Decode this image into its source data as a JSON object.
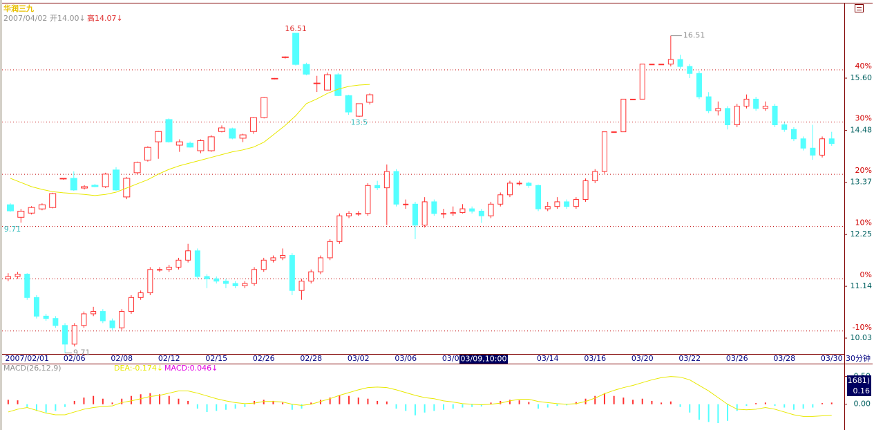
{
  "header": {
    "name": "华润三九",
    "date": "2007/04/02",
    "open": "开14.00↓",
    "high": "高14.07↓"
  },
  "period_label": "30分钟",
  "cursor_label": "03/09,10:00",
  "chart_data": [
    {
      "type": "candlestick",
      "up_color": "#ff3030",
      "down_color": "#54ffff",
      "grid": true,
      "extreme_labels": true,
      "ylim": [
        9.69,
        17.2
      ],
      "yticks": [
        {
          "value": 15.6,
          "label": "15.60"
        },
        14.48,
        13.37,
        12.25,
        11.14,
        10.03
      ],
      "y2lim": [
        -14.4,
        52.7
      ],
      "y2ticks": [
        {
          "value": 40,
          "label": "40%"
        },
        {
          "value": 30,
          "label": "30%"
        },
        {
          "value": 20,
          "label": "20%"
        },
        {
          "value": 10,
          "label": "10%"
        },
        {
          "value": 0,
          "label": "0%"
        },
        {
          "value": -10,
          "label": "-10%"
        }
      ],
      "categories": [
        null,
        null,
        "2007/02/01",
        null,
        null,
        null,
        null,
        "02/06",
        null,
        null,
        null,
        null,
        "02/08",
        null,
        null,
        null,
        null,
        "02/12",
        null,
        null,
        null,
        null,
        "02/15",
        null,
        null,
        null,
        null,
        "02/26",
        null,
        null,
        null,
        null,
        "02/28",
        null,
        null,
        null,
        null,
        "03/02",
        null,
        null,
        null,
        null,
        "03/06",
        null,
        null,
        null,
        null,
        "03/08",
        null,
        null,
        null,
        null,
        null,
        null,
        null,
        null,
        null,
        "03/14",
        null,
        null,
        null,
        null,
        "03/16",
        null,
        null,
        null,
        null,
        "03/20",
        null,
        null,
        null,
        null,
        "03/22",
        null,
        null,
        null,
        null,
        "03/26",
        null,
        null,
        null,
        null,
        "03/28",
        null,
        null,
        null,
        null,
        "03/30"
      ],
      "ohlc": [
        [
          11.3,
          11.42,
          11.25,
          11.35
        ],
        [
          11.35,
          11.45,
          11.3,
          11.4
        ],
        [
          11.4,
          11.42,
          10.85,
          10.9
        ],
        [
          10.9,
          10.95,
          10.45,
          10.5
        ],
        [
          10.5,
          10.55,
          10.4,
          10.45
        ],
        [
          10.45,
          10.5,
          10.25,
          10.3
        ],
        [
          10.3,
          10.35,
          9.71,
          9.9
        ],
        [
          9.9,
          10.35,
          9.85,
          10.3
        ],
        [
          10.3,
          10.6,
          10.25,
          10.55
        ],
        [
          10.55,
          10.7,
          10.5,
          10.6
        ],
        [
          10.6,
          10.65,
          10.35,
          10.4
        ],
        [
          10.4,
          10.45,
          10.2,
          10.25
        ],
        [
          10.25,
          10.65,
          10.2,
          10.6
        ],
        [
          10.6,
          10.95,
          10.55,
          10.9
        ],
        [
          10.9,
          11.05,
          10.85,
          11.0
        ],
        [
          11.0,
          11.55,
          10.95,
          11.5
        ],
        [
          11.5,
          11.55,
          11.45,
          11.5
        ],
        [
          11.5,
          11.6,
          11.45,
          11.55
        ],
        [
          11.55,
          11.75,
          11.5,
          11.7
        ],
        [
          11.7,
          12.05,
          11.65,
          11.9
        ],
        [
          11.9,
          11.95,
          11.3,
          11.35
        ],
        [
          11.35,
          11.4,
          11.1,
          11.3
        ],
        [
          11.3,
          11.35,
          11.2,
          11.25
        ],
        [
          11.25,
          11.3,
          11.1,
          11.2
        ],
        [
          11.2,
          11.25,
          11.1,
          11.15
        ],
        [
          11.15,
          11.25,
          11.1,
          11.2
        ],
        [
          11.2,
          11.55,
          11.15,
          11.5
        ],
        [
          11.5,
          11.75,
          11.45,
          11.7
        ],
        [
          11.7,
          11.8,
          11.65,
          11.75
        ],
        [
          11.75,
          11.95,
          11.7,
          11.8
        ],
        [
          11.8,
          11.85,
          10.95,
          11.05
        ],
        [
          11.05,
          11.3,
          10.85,
          11.25
        ],
        [
          11.25,
          11.5,
          11.2,
          11.45
        ],
        [
          11.45,
          11.8,
          11.4,
          11.75
        ],
        [
          11.75,
          12.15,
          11.7,
          12.1
        ],
        [
          12.1,
          12.7,
          12.05,
          12.65
        ],
        [
          12.65,
          12.75,
          12.6,
          12.7
        ],
        [
          12.7,
          12.75,
          12.65,
          12.7
        ],
        [
          12.7,
          13.35,
          12.65,
          13.3
        ],
        [
          13.3,
          13.4,
          13.2,
          13.25
        ],
        [
          13.25,
          13.75,
          12.45,
          13.6
        ],
        [
          13.6,
          13.65,
          12.85,
          12.9
        ],
        [
          12.9,
          13.0,
          12.8,
          12.9
        ],
        [
          12.9,
          12.95,
          12.15,
          12.45
        ],
        [
          12.45,
          13.05,
          12.4,
          12.95
        ],
        [
          12.95,
          13.0,
          12.65,
          12.7
        ],
        [
          12.7,
          12.8,
          12.6,
          12.7
        ],
        [
          12.7,
          12.85,
          12.65,
          12.72
        ],
        [
          12.72,
          12.9,
          12.7,
          12.8
        ],
        [
          12.8,
          12.85,
          12.7,
          12.75
        ],
        [
          12.75,
          12.8,
          12.5,
          12.65
        ],
        [
          12.65,
          12.95,
          12.6,
          12.9
        ],
        [
          12.9,
          13.15,
          12.85,
          13.1
        ],
        [
          13.1,
          13.4,
          13.05,
          13.35
        ],
        [
          13.35,
          13.4,
          13.3,
          13.35
        ],
        [
          13.35,
          13.38,
          13.25,
          13.3
        ],
        [
          13.3,
          13.32,
          12.75,
          12.8
        ],
        [
          12.8,
          12.95,
          12.75,
          12.85
        ],
        [
          12.85,
          13.05,
          12.8,
          12.95
        ],
        [
          12.95,
          13.0,
          12.8,
          12.85
        ],
        [
          12.85,
          13.05,
          12.8,
          13.0
        ],
        [
          13.0,
          13.45,
          12.95,
          13.4
        ],
        [
          13.4,
          13.65,
          13.35,
          13.6
        ],
        [
          13.6,
          14.45,
          13.55,
          14.45
        ],
        [
          14.45,
          14.45,
          14.45,
          14.45
        ],
        [
          14.45,
          15.15,
          14.45,
          15.15
        ],
        [
          15.15,
          15.15,
          15.15,
          15.15
        ],
        [
          15.15,
          15.9,
          15.15,
          15.9
        ],
        [
          15.9,
          15.9,
          15.9,
          15.9
        ],
        [
          15.9,
          15.9,
          15.9,
          15.9
        ],
        [
          15.9,
          16.51,
          15.85,
          16.0
        ],
        [
          16.0,
          16.1,
          15.8,
          15.85
        ],
        [
          15.85,
          15.9,
          15.6,
          15.7
        ],
        [
          15.7,
          15.75,
          15.15,
          15.2
        ],
        [
          15.2,
          15.3,
          14.85,
          14.9
        ],
        [
          14.9,
          15.1,
          14.8,
          14.95
        ],
        [
          14.95,
          15.0,
          14.5,
          14.6
        ],
        [
          14.6,
          15.05,
          14.55,
          15.0
        ],
        [
          15.0,
          15.25,
          14.95,
          15.15
        ],
        [
          15.15,
          15.2,
          14.9,
          14.95
        ],
        [
          14.95,
          15.1,
          14.9,
          15.0
        ],
        [
          15.0,
          15.05,
          14.55,
          14.6
        ],
        [
          14.6,
          14.65,
          14.45,
          14.5
        ],
        [
          14.5,
          14.55,
          14.25,
          14.3
        ],
        [
          14.3,
          14.35,
          14.05,
          14.1
        ],
        [
          14.1,
          14.6,
          13.85,
          13.95
        ],
        [
          13.95,
          14.35,
          13.9,
          14.3
        ],
        [
          14.3,
          14.45,
          14.15,
          14.2
        ]
      ]
    },
    {
      "type": "candlestick",
      "up_color": "#ff3030",
      "down_color": "#54ffff",
      "extreme_labels": true,
      "ylim": [
        9.51,
        16.71
      ],
      "ma_color": "#e8e800",
      "ohlc": [
        [
          10.35,
          10.4,
          10.1,
          10.13
        ],
        [
          9.9,
          10.2,
          9.71,
          10.12
        ],
        [
          10.05,
          10.3,
          10.0,
          10.25
        ],
        [
          10.2,
          10.4,
          10.15,
          10.35
        ],
        [
          10.25,
          10.78,
          10.22,
          10.75
        ],
        [
          11.28,
          11.3,
          11.25,
          11.3
        ],
        [
          11.3,
          11.55,
          10.85,
          10.88
        ],
        [
          10.95,
          11.05,
          10.9,
          11.0
        ],
        [
          11.05,
          11.1,
          10.98,
          11.0
        ],
        [
          11.0,
          11.5,
          10.95,
          11.45
        ],
        [
          11.6,
          11.7,
          10.85,
          10.88
        ],
        [
          10.63,
          11.35,
          10.55,
          11.3
        ],
        [
          11.5,
          11.9,
          11.45,
          11.87
        ],
        [
          11.95,
          12.45,
          11.9,
          12.41
        ],
        [
          12.61,
          13.0,
          12.0,
          12.98
        ],
        [
          13.41,
          13.45,
          12.58,
          12.61
        ],
        [
          12.49,
          12.7,
          12.25,
          12.61
        ],
        [
          12.56,
          12.62,
          12.4,
          12.42
        ],
        [
          12.29,
          12.7,
          12.2,
          12.65
        ],
        [
          12.29,
          12.85,
          12.25,
          12.79
        ],
        [
          12.98,
          13.2,
          12.95,
          13.11
        ],
        [
          13.08,
          13.12,
          12.7,
          12.74
        ],
        [
          12.74,
          12.9,
          12.6,
          12.86
        ],
        [
          12.98,
          13.5,
          12.9,
          13.48
        ],
        [
          13.48,
          14.22,
          13.45,
          14.2
        ],
        [
          14.88,
          14.9,
          14.85,
          14.89
        ],
        [
          15.65,
          15.68,
          15.6,
          15.66
        ],
        [
          16.51,
          16.51,
          15.35,
          15.39
        ],
        [
          15.39,
          15.45,
          15.0,
          15.04
        ],
        [
          14.7,
          14.98,
          14.4,
          14.72
        ],
        [
          14.47,
          15.1,
          14.45,
          15.02
        ],
        [
          15.02,
          15.08,
          14.25,
          14.27
        ],
        [
          14.27,
          14.3,
          13.58,
          13.68
        ],
        [
          13.53,
          13.98,
          13.5,
          13.98
        ],
        [
          14.03,
          14.35,
          13.95,
          14.3
        ]
      ],
      "ma": [
        11.3,
        11.15,
        11.0,
        10.9,
        10.82,
        10.78,
        10.75,
        10.72,
        10.68,
        10.72,
        10.8,
        10.95,
        11.1,
        11.25,
        11.45,
        11.62,
        11.75,
        11.85,
        11.95,
        12.05,
        12.15,
        12.25,
        12.32,
        12.42,
        12.6,
        12.9,
        13.2,
        13.55,
        13.98,
        14.15,
        14.35,
        14.5,
        14.6,
        14.65,
        14.67
      ]
    },
    {
      "type": "macd",
      "title": "MACD(26,12,9)",
      "up_color": "#ff3030",
      "down_color": "#54ffff",
      "ylim": [
        -0.44,
        0.72
      ],
      "yticks": [
        {
          "value": 0.5,
          "label": "0.50"
        },
        {
          "value": 0,
          "label": "0.00"
        }
      ],
      "cursor_box": {
        "count": "(1681)",
        "value": "0.16"
      },
      "series": [
        {
          "name": "DEA:-0.174↓",
          "color": "#e8e800",
          "values": [
            -0.14,
            -0.09,
            -0.06,
            -0.11,
            -0.16,
            -0.19,
            -0.19,
            -0.14,
            -0.09,
            -0.06,
            -0.04,
            -0.03,
            0.03,
            0.06,
            0.1,
            0.14,
            0.16,
            0.2,
            0.24,
            0.24,
            0.2,
            0.15,
            0.1,
            0.06,
            0.03,
            0.01,
            0.02,
            0.05,
            0.05,
            0.04,
            0.0,
            -0.02,
            0.0,
            0.05,
            0.1,
            0.16,
            0.21,
            0.26,
            0.3,
            0.31,
            0.3,
            0.26,
            0.21,
            0.16,
            0.12,
            0.1,
            0.06,
            0.04,
            0.01,
            0.0,
            -0.01,
            0.0,
            0.02,
            0.06,
            0.09,
            0.09,
            0.05,
            0.03,
            0.01,
            0.0,
            0.01,
            0.05,
            0.11,
            0.19,
            0.25,
            0.3,
            0.34,
            0.39,
            0.44,
            0.48,
            0.5,
            0.49,
            0.44,
            0.34,
            0.24,
            0.12,
            0.0,
            -0.09,
            -0.1,
            -0.09,
            -0.06,
            -0.09,
            -0.14,
            -0.19,
            -0.22,
            -0.22,
            -0.21,
            -0.2
          ]
        },
        {
          "name": "MACD:0.046↓",
          "color": "#e000e0",
          "values": [
            0.08,
            0.07,
            -0.05,
            -0.12,
            -0.15,
            -0.12,
            -0.05,
            0.06,
            0.12,
            0.15,
            0.1,
            0.03,
            0.1,
            0.15,
            0.18,
            0.2,
            0.18,
            0.15,
            0.1,
            0.06,
            -0.08,
            -0.14,
            -0.12,
            -0.1,
            -0.08,
            -0.05,
            0.06,
            0.08,
            0.06,
            0.03,
            -0.1,
            -0.08,
            0.03,
            0.08,
            0.12,
            0.16,
            0.15,
            0.12,
            0.1,
            0.06,
            0.05,
            -0.08,
            -0.12,
            -0.2,
            -0.15,
            -0.12,
            -0.1,
            -0.08,
            -0.06,
            -0.05,
            -0.04,
            0.03,
            0.06,
            0.08,
            0.07,
            0.04,
            -0.08,
            -0.06,
            -0.03,
            -0.02,
            0.04,
            0.1,
            0.15,
            0.2,
            0.15,
            0.12,
            0.08,
            0.1,
            0.06,
            0.03,
            0.05,
            -0.05,
            -0.15,
            -0.28,
            -0.32,
            -0.34,
            -0.3,
            -0.12,
            -0.03,
            0.02,
            0.03,
            -0.03,
            -0.06,
            -0.1,
            -0.08,
            -0.06,
            0.02,
            0.03
          ]
        }
      ]
    }
  ]
}
